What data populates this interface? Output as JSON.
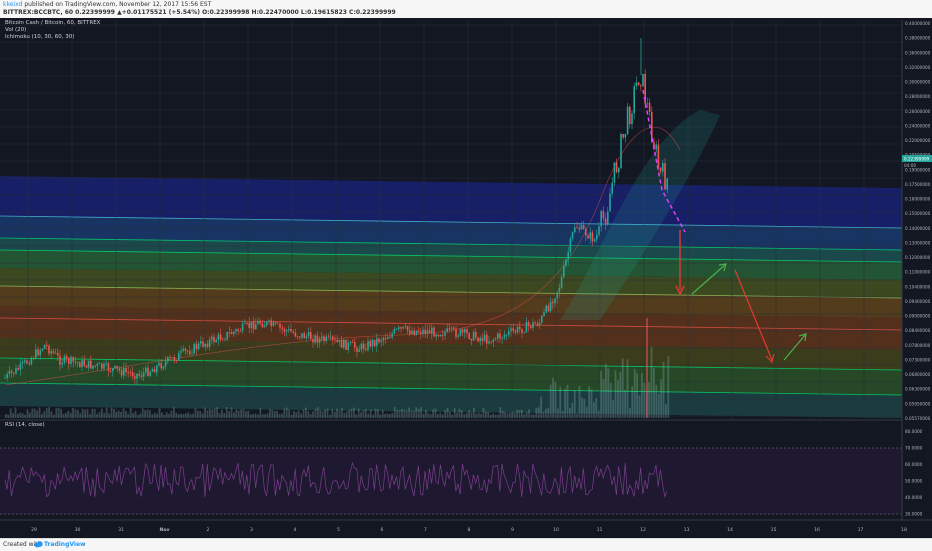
{
  "header": {
    "author": "kkeixd",
    "published": " published on TradingView.com, November 12, 2017 15:56 EST",
    "symbol_line": "BITTREX:BCCBTC, 60  0.22399999 ▲+0.01175521 (+5.54%) O:0.22399998 H:0.22470000 L:0.19615823 C:0.22399999",
    "change_color": "#26a69a"
  },
  "legends": {
    "title": "Bitcoin Cash / Bitcoin, 60, BITTREX",
    "volume": "Vol (20)",
    "ichimoku": "Ichimoku (10, 30, 60, 30)",
    "rsi": "RSI (14, close)"
  },
  "price_axis": {
    "labels": [
      "0.40000000",
      "0.38000000",
      "0.36000000",
      "0.32000000",
      "0.30000000",
      "0.28000000",
      "0.26000000",
      "0.24000000",
      "0.22000000",
      "0.20500000",
      "0.19000000",
      "0.17500000",
      "0.16000000",
      "0.15000000",
      "0.14000000",
      "0.13000000",
      "0.12000000",
      "0.11000000",
      "0.10400000",
      "0.09400000",
      "0.09000000",
      "0.08400000",
      "0.07800000",
      "0.07300000",
      "0.06800000",
      "0.06300000",
      "0.05950000",
      "0.05570000"
    ],
    "last_price": "0.22399999",
    "countdown": "04:00",
    "last_price_color": "#26a69a"
  },
  "rsi_axis": {
    "labels": [
      "80.0000",
      "70.0000",
      "60.0000",
      "50.0000",
      "40.0000",
      "30.0000"
    ]
  },
  "time_axis": {
    "labels": [
      "29",
      "30",
      "31",
      "Nov",
      "2",
      "3",
      "4",
      "5",
      "6",
      "7",
      "8",
      "9",
      "10",
      "11",
      "12",
      "13",
      "14",
      "15",
      "16",
      "17",
      "18"
    ]
  },
  "colors": {
    "background": "#131722",
    "candle_up": "#26a69a",
    "candle_down": "#ef5350",
    "annotation_red": "#e53935",
    "annotation_green": "#4caf50",
    "annotation_magenta": "#e040fb",
    "rsi_line": "#7b3f8c",
    "fib_levels": "#00e676"
  },
  "footer": {
    "created_with": "Created with",
    "brand": "TradingView"
  }
}
